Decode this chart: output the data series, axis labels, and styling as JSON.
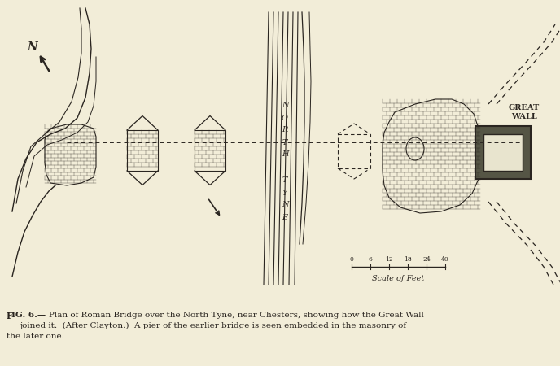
{
  "bg_color": "#f2edd8",
  "line_color": "#2a2520",
  "title_line1": "Fig. 6.—Plan of Roman Bridge over the North Tyne, near Chesters, showing how the Great Wall",
  "title_line2": "joined it.  (After Clayton.)  A pier of the earlier bridge is seen embedded in the masonry of",
  "title_line3": "the later one.",
  "scale_label": "Scale of Feet",
  "scale_ticks": [
    "0",
    "6",
    "12",
    "18",
    "24",
    "40"
  ],
  "great_wall_label": "GREAT\nWALL",
  "north_tyne_label": "NORTH TYNE"
}
